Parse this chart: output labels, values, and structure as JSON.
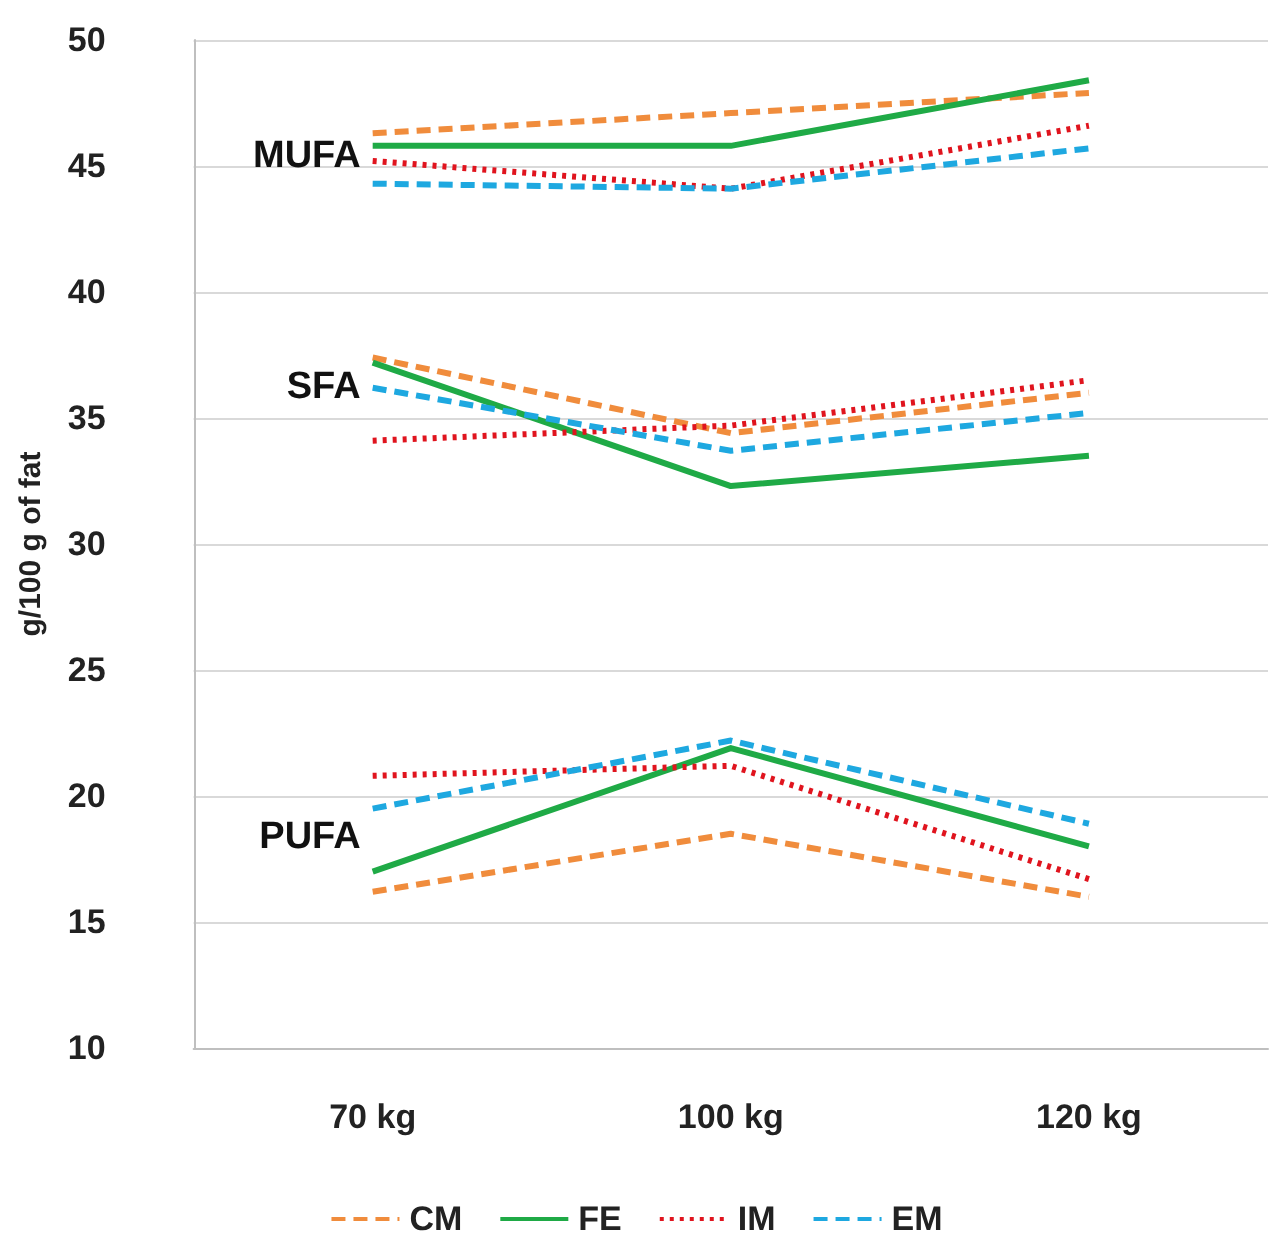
{
  "chart_data": {
    "type": "line",
    "ylabel": "g/100 g of fat",
    "categories": [
      "70 kg",
      "100 kg",
      "120 kg"
    ],
    "ylim": [
      10,
      50
    ],
    "yticks": [
      10,
      15,
      20,
      25,
      30,
      35,
      40,
      45,
      50
    ],
    "grid": "y",
    "legend": "bottom",
    "marker": "none",
    "series": [
      {
        "name": "CM",
        "color": "#f08c3c",
        "line_style": "dashed",
        "values": [
          46.3,
          47.1,
          47.9
        ]
      },
      {
        "name": "FE",
        "color": "#1faa46",
        "line_style": "solid",
        "values": [
          45.8,
          45.8,
          48.4
        ]
      },
      {
        "name": "IM",
        "color": "#e0141e",
        "line_style": "dotted",
        "values": [
          45.2,
          44.1,
          46.6
        ]
      },
      {
        "name": "EM",
        "color": "#1ea8e0",
        "line_style": "dashed",
        "values": [
          44.3,
          44.1,
          45.7
        ]
      },
      {
        "color": "#f08c3c",
        "line_style": "dashed",
        "values": [
          37.4,
          34.4,
          36.0
        ]
      },
      {
        "color": "#1faa46",
        "line_style": "solid",
        "values": [
          37.2,
          32.3,
          33.5
        ]
      },
      {
        "color": "#e0141e",
        "line_style": "dotted",
        "values": [
          34.1,
          34.7,
          36.5
        ]
      },
      {
        "color": "#1ea8e0",
        "line_style": "dashed",
        "values": [
          36.2,
          33.7,
          35.2
        ]
      },
      {
        "color": "#f08c3c",
        "line_style": "dashed",
        "values": [
          16.2,
          18.5,
          16.0
        ]
      },
      {
        "color": "#1faa46",
        "line_style": "solid",
        "values": [
          17.0,
          21.9,
          18.0
        ]
      },
      {
        "color": "#e0141e",
        "line_style": "dotted",
        "values": [
          20.8,
          21.2,
          16.7
        ]
      },
      {
        "color": "#1ea8e0",
        "line_style": "dashed",
        "values": [
          19.5,
          22.2,
          18.9
        ]
      }
    ],
    "annotations": [
      "MUFA",
      "SFA",
      "PUFA"
    ]
  }
}
